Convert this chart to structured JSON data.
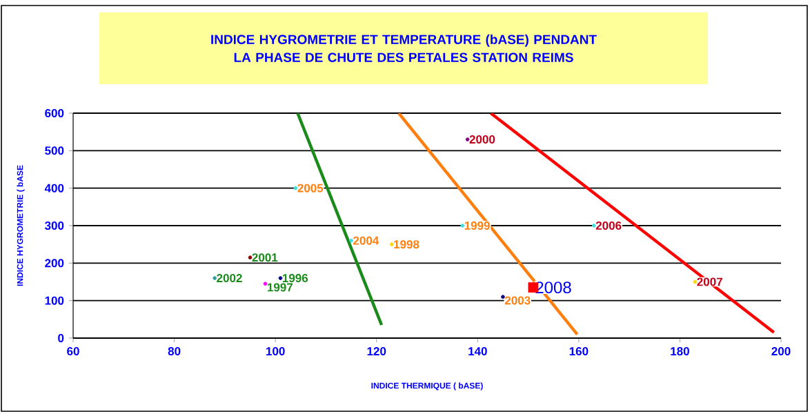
{
  "chart_data": {
    "type": "scatter",
    "title": "INDICE HYGROMETRIE ET TEMPERATURE (bASE) PENDANT LA PHASE DE CHUTE DES PETALES STATION REIMS",
    "xlabel": "INDICE THERMIQUE ( bASE)",
    "ylabel": "INDICE HYGROMETRIE ( bASE",
    "xlim": [
      60,
      200
    ],
    "xticks": [
      60,
      80,
      100,
      120,
      140,
      160,
      180,
      200
    ],
    "ylim": [
      0,
      600
    ],
    "yticks": [
      0,
      100,
      200,
      300,
      400,
      500,
      600
    ],
    "grid": "y",
    "series": [
      {
        "type": "line",
        "color": "#1a8a1a",
        "x": [
          104.4,
          121
        ],
        "values": [
          600,
          35
        ]
      },
      {
        "type": "line",
        "color": "#ff7f0e",
        "x": [
          124.4,
          159.7
        ],
        "values": [
          600,
          10
        ]
      },
      {
        "type": "line",
        "color": "#ff0000",
        "x": [
          142.6,
          198.6
        ],
        "values": [
          600,
          15
        ]
      },
      {
        "name": "2001",
        "marker": "circle",
        "color": "#1a8a1a",
        "x": [
          95
        ],
        "values": [
          215
        ],
        "colors": [
          "#8b0000"
        ]
      },
      {
        "name": "2002",
        "marker": "circle",
        "color": "#1a8a1a",
        "x": [
          88
        ],
        "values": [
          160
        ],
        "colors": [
          "#2aa198"
        ]
      },
      {
        "name": "1996",
        "marker": "circle",
        "color": "#1a8a1a",
        "x": [
          101
        ],
        "values": [
          160
        ],
        "colors": [
          "#000080"
        ]
      },
      {
        "name": "1997",
        "marker": "circle",
        "color": "#1a8a1a",
        "x": [
          98
        ],
        "values": [
          145
        ],
        "colors": [
          "#ff00ff"
        ]
      },
      {
        "name": "2005",
        "marker": "circle",
        "color": "#ff7f0e",
        "x": [
          104
        ],
        "values": [
          400
        ],
        "colors": [
          "#40e0e0"
        ]
      },
      {
        "name": "2004",
        "marker": "circle",
        "color": "#ff7f0e",
        "x": [
          115
        ],
        "values": [
          260
        ],
        "colors": [
          "#40e0e0"
        ]
      },
      {
        "name": "1998",
        "marker": "circle",
        "color": "#ff7f0e",
        "x": [
          123
        ],
        "values": [
          250
        ],
        "colors": [
          "#ffd700"
        ]
      },
      {
        "name": "1999",
        "marker": "circle",
        "color": "#ff7f0e",
        "x": [
          137
        ],
        "values": [
          300
        ],
        "colors": [
          "#40e0e0"
        ]
      },
      {
        "name": "2003",
        "marker": "circle",
        "color": "#ff7f0e",
        "x": [
          145
        ],
        "values": [
          110
        ],
        "colors": [
          "#000080"
        ]
      },
      {
        "name": "2000",
        "marker": "circle",
        "color": "#c00018",
        "x": [
          138
        ],
        "values": [
          530
        ],
        "colors": [
          "#800080"
        ]
      },
      {
        "name": "2006",
        "marker": "circle",
        "color": "#c00018",
        "x": [
          163
        ],
        "values": [
          300
        ],
        "colors": [
          "#40e0e0"
        ]
      },
      {
        "name": "2007",
        "marker": "circle",
        "color": "#c00018",
        "x": [
          183
        ],
        "values": [
          150
        ],
        "colors": [
          "#ffd700"
        ]
      },
      {
        "name": "2008",
        "marker": "square",
        "color": "#0000ff",
        "x": [
          151
        ],
        "values": [
          135
        ],
        "colors": [
          "#ff0000"
        ]
      }
    ]
  }
}
